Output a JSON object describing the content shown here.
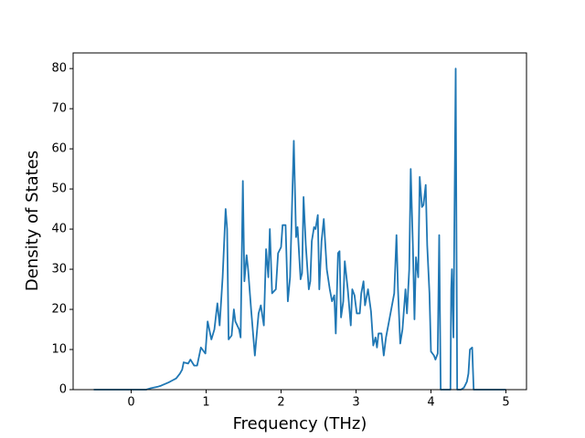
{
  "chart_data": {
    "type": "line",
    "x_label": "Frequency (THz)",
    "y_label": "Density of States",
    "x": [
      -0.5,
      0.2,
      0.25,
      0.3,
      0.35,
      0.4,
      0.45,
      0.5,
      0.55,
      0.6,
      0.65,
      0.68,
      0.7,
      0.76,
      0.79,
      0.84,
      0.88,
      0.93,
      0.99,
      1.02,
      1.07,
      1.11,
      1.15,
      1.18,
      1.22,
      1.26,
      1.28,
      1.3,
      1.34,
      1.37,
      1.39,
      1.44,
      1.46,
      1.49,
      1.51,
      1.54,
      1.56,
      1.6,
      1.65,
      1.7,
      1.73,
      1.77,
      1.8,
      1.83,
      1.85,
      1.88,
      1.93,
      1.96,
      2.0,
      2.02,
      2.06,
      2.09,
      2.12,
      2.17,
      2.2,
      2.22,
      2.26,
      2.28,
      2.3,
      2.33,
      2.37,
      2.39,
      2.41,
      2.44,
      2.46,
      2.49,
      2.51,
      2.54,
      2.57,
      2.61,
      2.65,
      2.68,
      2.71,
      2.73,
      2.76,
      2.78,
      2.8,
      2.83,
      2.85,
      2.89,
      2.93,
      2.95,
      2.98,
      3.01,
      3.05,
      3.07,
      3.1,
      3.12,
      3.16,
      3.2,
      3.23,
      3.26,
      3.28,
      3.3,
      3.34,
      3.37,
      3.4,
      3.44,
      3.48,
      3.51,
      3.54,
      3.56,
      3.59,
      3.62,
      3.66,
      3.68,
      3.71,
      3.73,
      3.76,
      3.78,
      3.8,
      3.83,
      3.85,
      3.88,
      3.9,
      3.93,
      3.95,
      3.98,
      4.0,
      4.04,
      4.06,
      4.09,
      4.11,
      4.13,
      4.26,
      4.27,
      4.28,
      4.3,
      4.33,
      4.35,
      4.4,
      4.44,
      4.48,
      4.5,
      4.52,
      4.55,
      4.57,
      5.0
    ],
    "values": [
      0,
      0,
      0.3,
      0.5,
      0.7,
      1,
      1.4,
      1.8,
      2.3,
      2.8,
      4,
      5,
      6.8,
      6.5,
      7.5,
      6,
      6,
      10.5,
      9,
      17,
      12.5,
      15,
      21.5,
      16,
      28,
      45,
      40,
      12.5,
      13.5,
      20,
      17,
      15,
      13,
      52,
      27,
      33.5,
      30,
      20,
      8.5,
      19,
      21,
      16,
      35,
      28,
      40,
      24,
      25,
      34,
      35.5,
      41,
      41,
      22,
      28,
      62,
      38,
      40.5,
      27.5,
      29,
      48,
      36,
      25,
      27,
      37,
      40.5,
      40,
      43.5,
      25,
      37,
      42.5,
      30,
      25,
      22,
      23.5,
      14,
      34,
      34.5,
      18,
      22,
      32,
      25,
      16,
      25,
      23.5,
      19,
      19,
      24,
      27,
      21,
      25,
      19.5,
      11,
      13,
      10.5,
      14,
      14,
      8.5,
      13,
      17,
      21,
      24,
      38.5,
      25,
      11.5,
      15,
      25,
      19,
      30,
      55,
      35,
      17.5,
      33,
      28,
      53,
      45.5,
      46,
      51,
      36,
      24,
      9.5,
      8.5,
      7.5,
      9,
      38.5,
      0,
      0,
      25,
      30,
      13,
      80,
      0,
      0,
      0.5,
      2,
      4,
      10,
      10.5,
      0,
      0
    ],
    "color": "#1f77b4",
    "xlim": [
      -0.775,
      5.275
    ],
    "xticks": [
      0,
      1,
      2,
      3,
      4,
      5
    ],
    "ylim": [
      0,
      83.9
    ],
    "yticks": [
      0,
      10,
      20,
      30,
      40,
      50,
      60,
      70,
      80
    ]
  }
}
